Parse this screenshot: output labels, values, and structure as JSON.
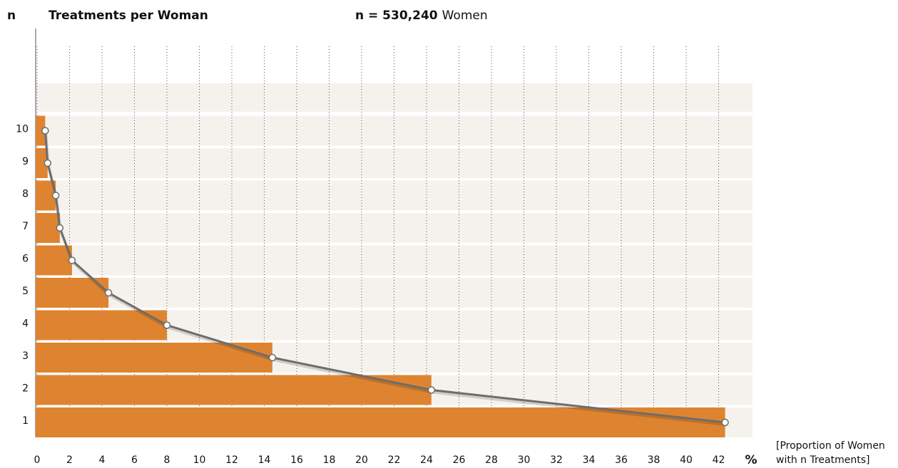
{
  "chart_data": {
    "type": "bar",
    "orientation": "horizontal",
    "axis_label_y": "n",
    "title": "Treatments per Woman",
    "subtitle_bold": "n = 530,240",
    "subtitle": "Women",
    "x_unit": "%",
    "x_label": [
      "[Proportion of Women",
      "with n Treatments]"
    ],
    "categories": [
      "1",
      "2",
      "3",
      "4",
      "5",
      "6",
      "7",
      "8",
      "9",
      "10"
    ],
    "values": [
      42.4,
      24.3,
      14.5,
      8.0,
      4.4,
      2.15,
      1.4,
      1.15,
      0.65,
      0.5
    ],
    "color": "#de8430",
    "line_color": "#6d6d6d",
    "xlim": [
      0,
      44
    ],
    "xticks": [
      0,
      2,
      4,
      6,
      8,
      10,
      12,
      14,
      16,
      18,
      20,
      22,
      24,
      26,
      28,
      30,
      32,
      34,
      36,
      38,
      40,
      42
    ],
    "grid": true
  }
}
